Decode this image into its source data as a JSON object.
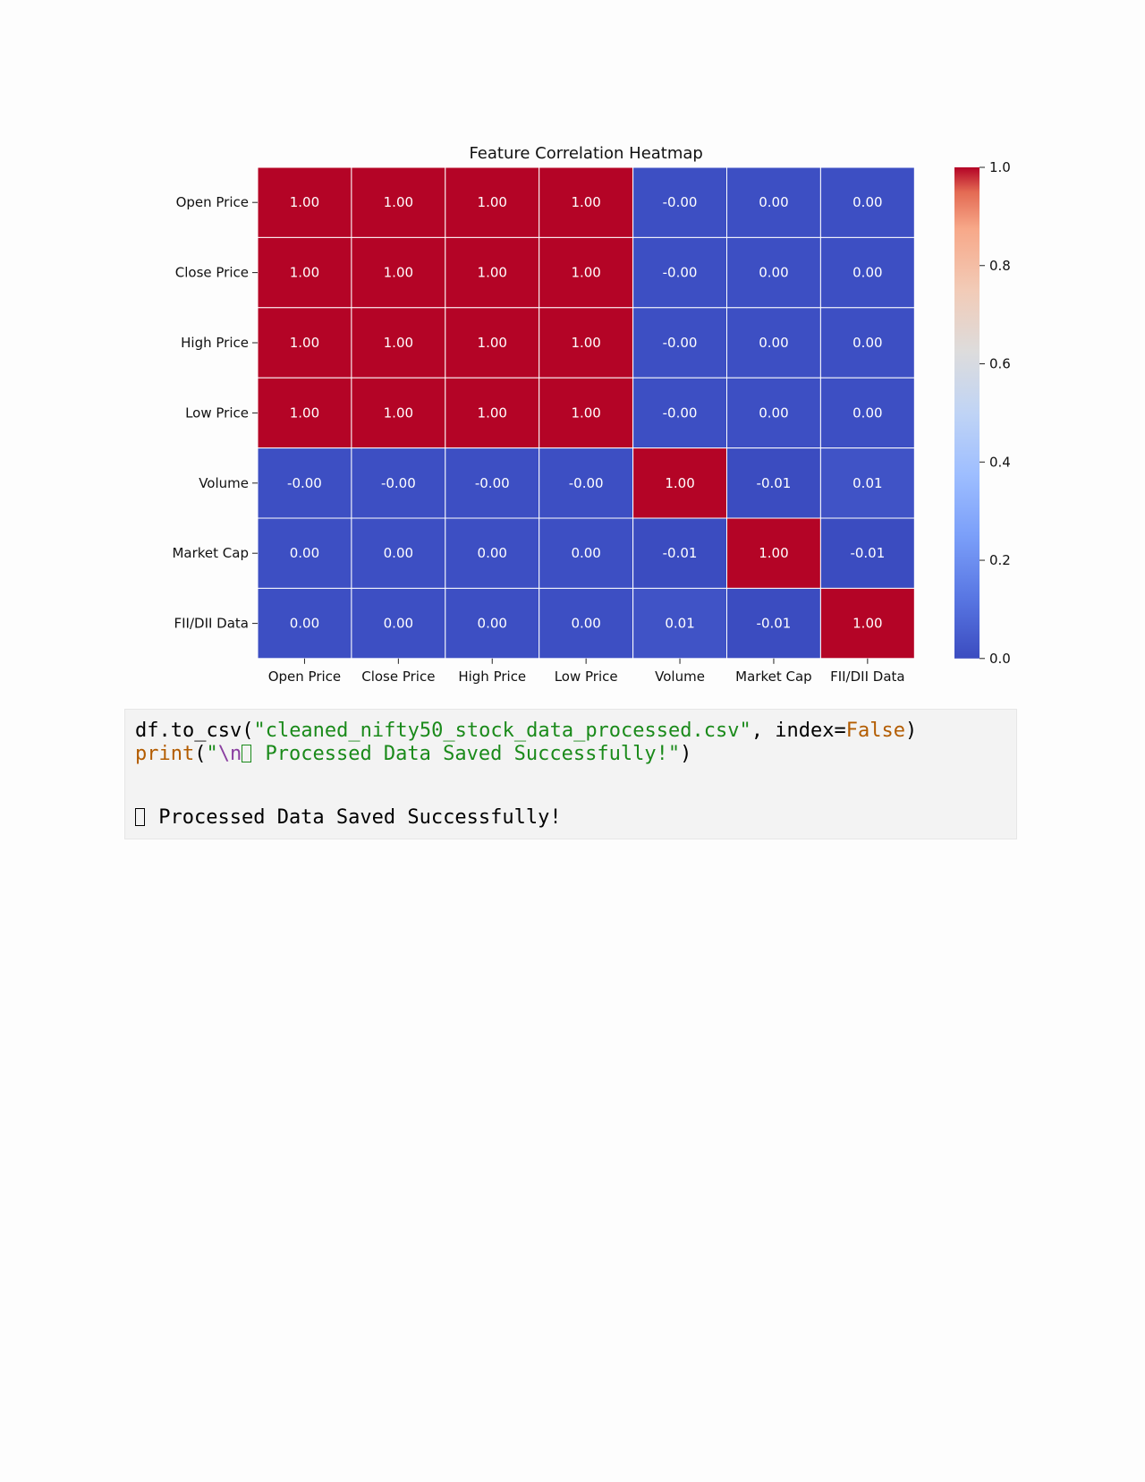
{
  "chart_data": {
    "type": "heatmap",
    "title": "Feature Correlation Heatmap",
    "rows": [
      "Open Price",
      "Close Price",
      "High Price",
      "Low Price",
      "Volume",
      "Market Cap",
      "FII/DII Data"
    ],
    "columns": [
      "Open Price",
      "Close Price",
      "High Price",
      "Low Price",
      "Volume",
      "Market Cap",
      "FII/DII Data"
    ],
    "values": [
      [
        1.0,
        1.0,
        1.0,
        1.0,
        -0.0,
        0.0,
        0.0
      ],
      [
        1.0,
        1.0,
        1.0,
        1.0,
        -0.0,
        0.0,
        0.0
      ],
      [
        1.0,
        1.0,
        1.0,
        1.0,
        -0.0,
        0.0,
        0.0
      ],
      [
        1.0,
        1.0,
        1.0,
        1.0,
        -0.0,
        0.0,
        0.0
      ],
      [
        -0.0,
        -0.0,
        -0.0,
        -0.0,
        1.0,
        -0.01,
        0.01
      ],
      [
        0.0,
        0.0,
        0.0,
        0.0,
        -0.01,
        1.0,
        -0.01
      ],
      [
        0.0,
        0.0,
        0.0,
        0.0,
        0.01,
        -0.01,
        1.0
      ]
    ],
    "cell_labels": [
      [
        "1.00",
        "1.00",
        "1.00",
        "1.00",
        "-0.00",
        "0.00",
        "0.00"
      ],
      [
        "1.00",
        "1.00",
        "1.00",
        "1.00",
        "-0.00",
        "0.00",
        "0.00"
      ],
      [
        "1.00",
        "1.00",
        "1.00",
        "1.00",
        "-0.00",
        "0.00",
        "0.00"
      ],
      [
        "1.00",
        "1.00",
        "1.00",
        "1.00",
        "-0.00",
        "0.00",
        "0.00"
      ],
      [
        "-0.00",
        "-0.00",
        "-0.00",
        "-0.00",
        "1.00",
        "-0.01",
        "0.01"
      ],
      [
        "0.00",
        "0.00",
        "0.00",
        "0.00",
        "-0.01",
        "1.00",
        "-0.01"
      ],
      [
        "0.00",
        "0.00",
        "0.00",
        "0.00",
        "0.01",
        "-0.01",
        "1.00"
      ]
    ],
    "colormap": "coolwarm",
    "color_range": [
      -0.01,
      1.0
    ],
    "colorbar_ticks": [
      0.0,
      0.2,
      0.4,
      0.6,
      0.8,
      1.0
    ],
    "colorbar_tick_labels": [
      "0.0",
      "0.2",
      "0.4",
      "0.6",
      "0.8",
      "1.0"
    ],
    "colors": {
      "high": "#b40426",
      "low": "#3b4cc0",
      "cell_border": "#ffffff"
    }
  },
  "code_cell": {
    "line1": {
      "part1": "df.to_csv(",
      "part2": "\"cleaned_nifty50_stock_data_processed.csv\"",
      "part3": ", index=",
      "part4": "False",
      "part5": ")"
    },
    "line2": {
      "part1": "print",
      "part2": "(",
      "part3": "\"",
      "part4": "\\n",
      "part5": " Processed Data Saved Successfully!\"",
      "part6": ")"
    },
    "output_text": " Processed Data Saved Successfully!"
  }
}
